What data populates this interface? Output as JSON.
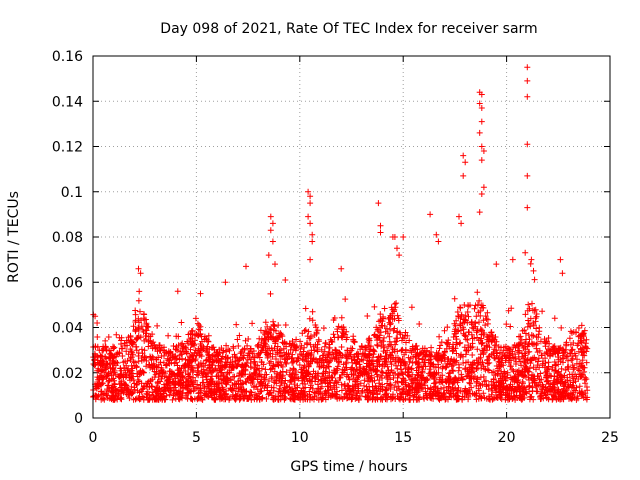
{
  "chart_data": {
    "type": "scatter",
    "title": "Day 098 of 2021, Rate Of TEC Index for receiver sarm",
    "xlabel": "GPS time / hours",
    "ylabel": "ROTI / TECUs",
    "xlim": [
      0,
      25
    ],
    "ylim": [
      0,
      0.16
    ],
    "xticks": [
      0,
      5,
      10,
      15,
      20,
      25
    ],
    "xtick_labels": [
      "0",
      "5",
      "10",
      "15",
      "20",
      "25"
    ],
    "yticks": [
      0,
      0.02,
      0.04,
      0.06,
      0.08,
      0.1,
      0.12,
      0.14,
      0.16
    ],
    "ytick_labels": [
      "0",
      "0.02",
      "0.04",
      "0.06",
      "0.08",
      "0.1",
      "0.12",
      "0.14",
      "0.16"
    ],
    "grid": true,
    "marker": "plus",
    "color": "#ff0000",
    "series": [
      {
        "name": "ROTI",
        "points": [
          [
            0.1,
            0.045
          ],
          [
            0.2,
            0.042
          ],
          [
            2.2,
            0.066
          ],
          [
            2.3,
            0.064
          ],
          [
            4.1,
            0.056
          ],
          [
            5.2,
            0.055
          ],
          [
            7.4,
            0.067
          ],
          [
            8.6,
            0.089
          ],
          [
            8.7,
            0.086
          ],
          [
            8.6,
            0.083
          ],
          [
            8.7,
            0.078
          ],
          [
            8.5,
            0.072
          ],
          [
            8.8,
            0.068
          ],
          [
            10.4,
            0.1
          ],
          [
            10.5,
            0.098
          ],
          [
            10.5,
            0.095
          ],
          [
            10.4,
            0.089
          ],
          [
            10.5,
            0.086
          ],
          [
            10.6,
            0.081
          ],
          [
            10.6,
            0.078
          ],
          [
            10.5,
            0.07
          ],
          [
            13.8,
            0.095
          ],
          [
            13.9,
            0.085
          ],
          [
            13.9,
            0.082
          ],
          [
            14.6,
            0.08
          ],
          [
            14.7,
            0.075
          ],
          [
            14.8,
            0.072
          ],
          [
            16.3,
            0.09
          ],
          [
            16.6,
            0.081
          ],
          [
            16.7,
            0.078
          ],
          [
            17.7,
            0.089
          ],
          [
            17.8,
            0.086
          ],
          [
            17.9,
            0.116
          ],
          [
            18.0,
            0.113
          ],
          [
            17.9,
            0.107
          ],
          [
            18.7,
            0.144
          ],
          [
            18.8,
            0.143
          ],
          [
            18.7,
            0.139
          ],
          [
            18.8,
            0.137
          ],
          [
            18.8,
            0.131
          ],
          [
            18.7,
            0.126
          ],
          [
            18.8,
            0.12
          ],
          [
            18.9,
            0.118
          ],
          [
            18.8,
            0.114
          ],
          [
            18.9,
            0.102
          ],
          [
            18.8,
            0.099
          ],
          [
            18.7,
            0.091
          ],
          [
            21.0,
            0.155
          ],
          [
            21.0,
            0.149
          ],
          [
            21.0,
            0.142
          ],
          [
            21.0,
            0.121
          ],
          [
            21.0,
            0.107
          ],
          [
            21.0,
            0.093
          ],
          [
            20.9,
            0.073
          ],
          [
            21.2,
            0.07
          ],
          [
            21.3,
            0.065
          ],
          [
            22.6,
            0.07
          ],
          [
            22.7,
            0.064
          ],
          [
            20.3,
            0.07
          ],
          [
            19.5,
            0.068
          ],
          [
            15.0,
            0.08
          ],
          [
            14.5,
            0.08
          ],
          [
            12.0,
            0.066
          ],
          [
            9.3,
            0.061
          ],
          [
            6.4,
            0.06
          ]
        ]
      }
    ],
    "dense_band": {
      "description_hours": [
        0,
        24
      ],
      "typical_low": 0.008,
      "typical_high": 0.032
    }
  }
}
